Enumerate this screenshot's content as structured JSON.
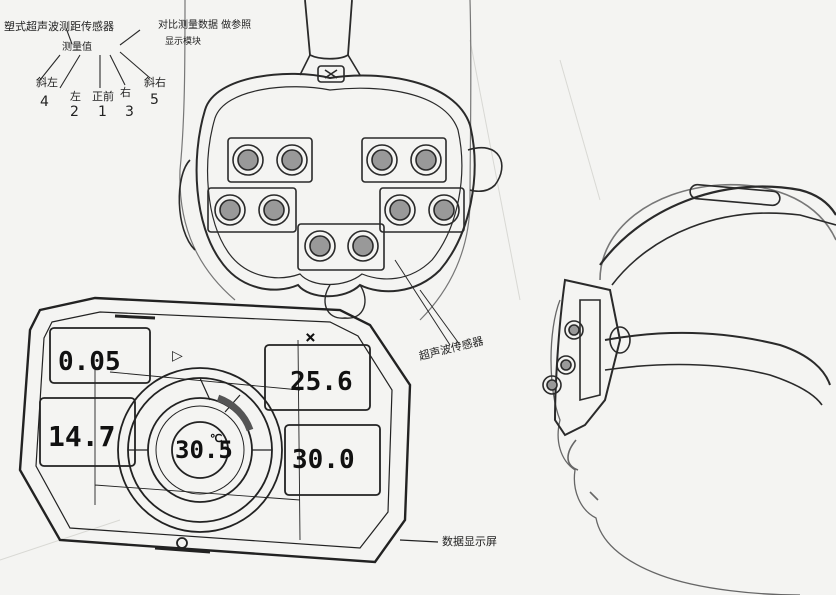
{
  "notes": {
    "top_line": "塑式超声波测距传感器",
    "center_line": "测量值",
    "right_line": "对比测量数据 做参照",
    "right_line2": "显示模块",
    "labels": [
      "斜左",
      "左",
      "正前",
      "右",
      "斜右"
    ],
    "numbers": [
      "4",
      "2",
      "1",
      "3",
      "5"
    ]
  },
  "annotations": {
    "sensor_label": "超声波传感器",
    "screen_label": "数据显示屏"
  },
  "display": {
    "value_top_left": "0.05",
    "value_mid_left": "14.7",
    "value_top_right": "25.6",
    "value_bottom_right": "30.0",
    "value_center": "30.5",
    "center_unit": "℃",
    "close_mark": "×",
    "play_mark": "▷"
  },
  "colors": {
    "ink": "#222222",
    "paper": "#f4f4f2"
  }
}
